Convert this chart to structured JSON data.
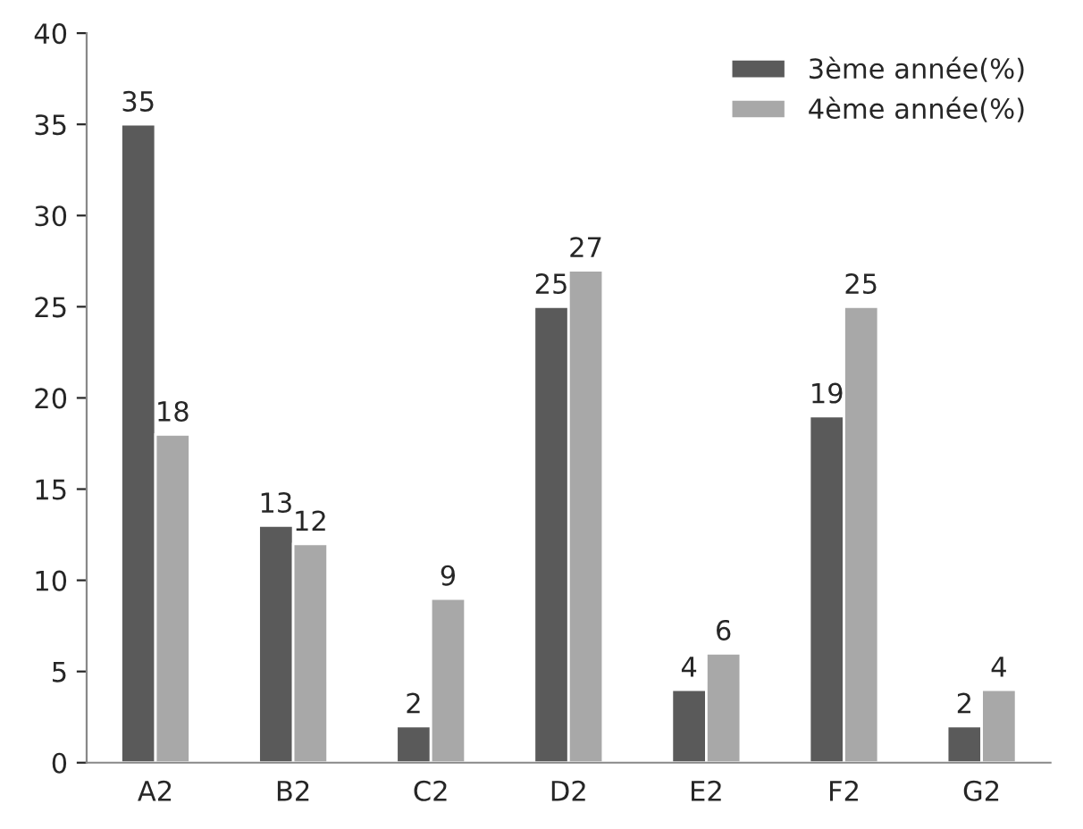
{
  "chart_data": {
    "type": "bar",
    "categories": [
      "A2",
      "B2",
      "C2",
      "D2",
      "E2",
      "F2",
      "G2"
    ],
    "series": [
      {
        "name": "3ème année(%)",
        "color": "#5a5a5a",
        "values": [
          35,
          13,
          2,
          25,
          4,
          19,
          2
        ]
      },
      {
        "name": "4ème année(%)",
        "color": "#a8a8a8",
        "values": [
          18,
          12,
          9,
          27,
          6,
          25,
          4
        ]
      }
    ],
    "ylim": [
      0,
      40
    ],
    "yticks": [
      0,
      5,
      10,
      15,
      20,
      25,
      30,
      35,
      40
    ],
    "grid": false,
    "legend": "top right",
    "data_labels": true
  }
}
